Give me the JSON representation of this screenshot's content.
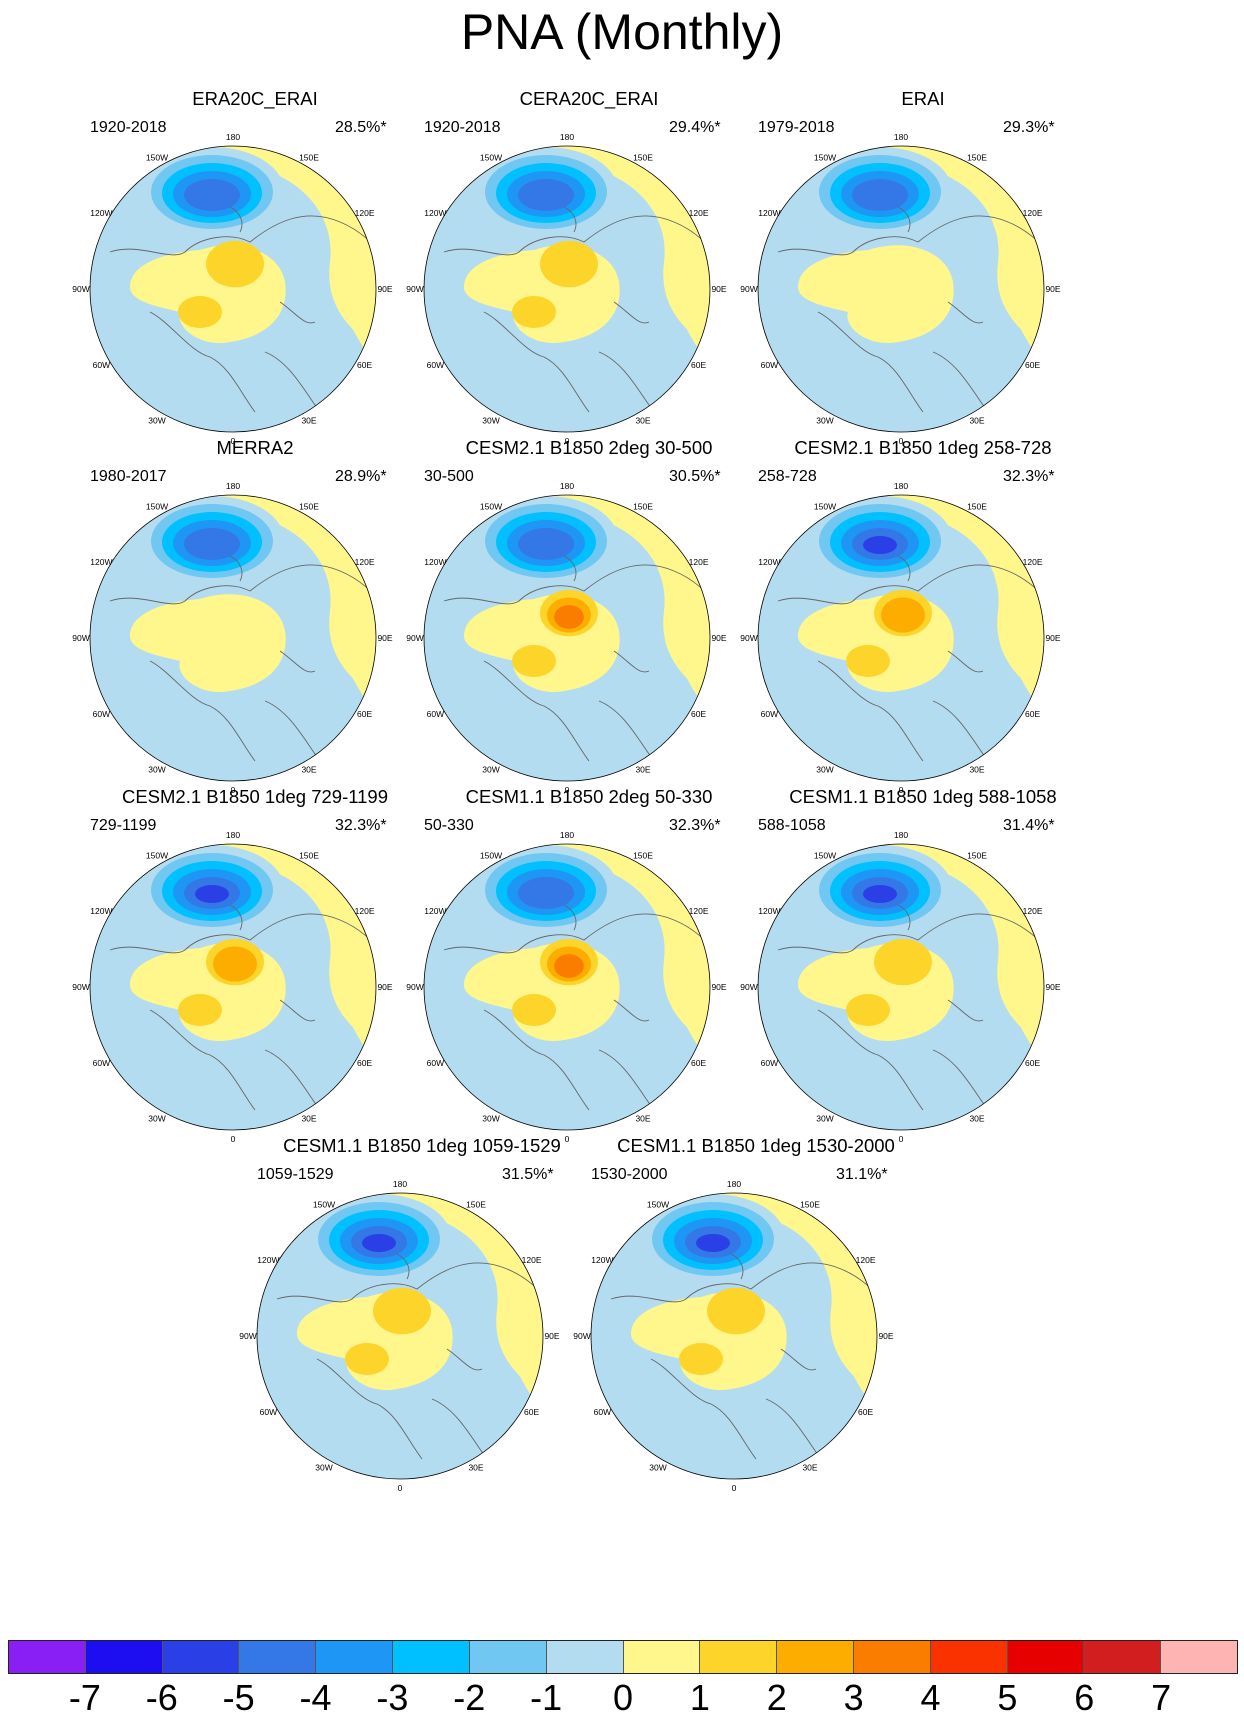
{
  "title": "PNA (Monthly)",
  "lon_labels": [
    "180",
    "150E",
    "120E",
    "90E",
    "60E",
    "30E",
    "0",
    "30W",
    "60W",
    "90W",
    "120W",
    "150W"
  ],
  "panels": [
    {
      "title": "ERA20C_ERAI",
      "period": "1920-2018",
      "variance": "28.5%*",
      "pos_max": 2,
      "neg_min": -5
    },
    {
      "title": "CERA20C_ERAI",
      "period": "1920-2018",
      "variance": "29.4%*",
      "pos_max": 2,
      "neg_min": -5
    },
    {
      "title": "ERAI",
      "period": "1979-2018",
      "variance": "29.3%*",
      "pos_max": 1,
      "neg_min": -5
    },
    {
      "title": "MERRA2",
      "period": "1980-2017",
      "variance": "28.9%*",
      "pos_max": 1,
      "neg_min": -5
    },
    {
      "title": "CESM2.1 B1850 2deg 30-500",
      "period": "30-500",
      "variance": "30.5%*",
      "pos_max": 4,
      "neg_min": -5
    },
    {
      "title": "CESM2.1 B1850 1deg 258-728",
      "period": "258-728",
      "variance": "32.3%*",
      "pos_max": 3,
      "neg_min": -6
    },
    {
      "title": "CESM2.1 B1850 1deg 729-1199",
      "period": "729-1199",
      "variance": "32.3%*",
      "pos_max": 3,
      "neg_min": -6
    },
    {
      "title": "CESM1.1 B1850 2deg 50-330",
      "period": "50-330",
      "variance": "32.3%*",
      "pos_max": 4,
      "neg_min": -5
    },
    {
      "title": "CESM1.1 B1850 1deg 588-1058",
      "period": "588-1058",
      "variance": "31.4%*",
      "pos_max": 2,
      "neg_min": -6
    },
    {
      "title": "CESM1.1 B1850 1deg 1059-1529",
      "period": "1059-1529",
      "variance": "31.5%*",
      "pos_max": 2,
      "neg_min": -6
    },
    {
      "title": "CESM1.1 B1850 1deg 1530-2000",
      "period": "1530-2000",
      "variance": "31.1%*",
      "pos_max": 2,
      "neg_min": -6
    }
  ],
  "colorbar": {
    "labels": [
      "-7",
      "-6",
      "-5",
      "-4",
      "-3",
      "-2",
      "-1",
      "0",
      "1",
      "2",
      "3",
      "4",
      "5",
      "6",
      "7"
    ],
    "colors": [
      "#8a1ff5",
      "#1c0ef0",
      "#2a40e6",
      "#3478e8",
      "#1e96f5",
      "#00c0ff",
      "#70c8f2",
      "#b4dcf0",
      "#fff68c",
      "#fdd42a",
      "#fdac00",
      "#fa7d00",
      "#fa3200",
      "#e60000",
      "#d21e1e",
      "#ffb4b4"
    ]
  }
}
